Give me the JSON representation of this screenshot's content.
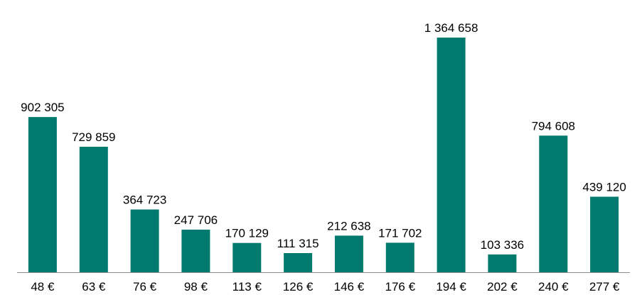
{
  "chart_data": {
    "type": "bar",
    "categories": [
      "48 €",
      "63 €",
      "76 €",
      "98 €",
      "113 €",
      "126 €",
      "146 €",
      "176 €",
      "194 €",
      "202 €",
      "240 €",
      "277 €"
    ],
    "values": [
      902305,
      729859,
      364723,
      247706,
      170129,
      111315,
      212638,
      171702,
      1364658,
      103336,
      794608,
      439120
    ],
    "value_labels": [
      "902 305",
      "729 859",
      "364 723",
      "247 706",
      "170 129",
      "111 315",
      "212 638",
      "171 702",
      "1 364 658",
      "103 336",
      "794 608",
      "439 120"
    ],
    "title": "",
    "xlabel": "",
    "ylabel": "",
    "ylim": [
      0,
      1364658
    ],
    "grid": false,
    "legend": "none",
    "bar_color": "#007A6E",
    "axis_color": "#8c8c8c"
  }
}
